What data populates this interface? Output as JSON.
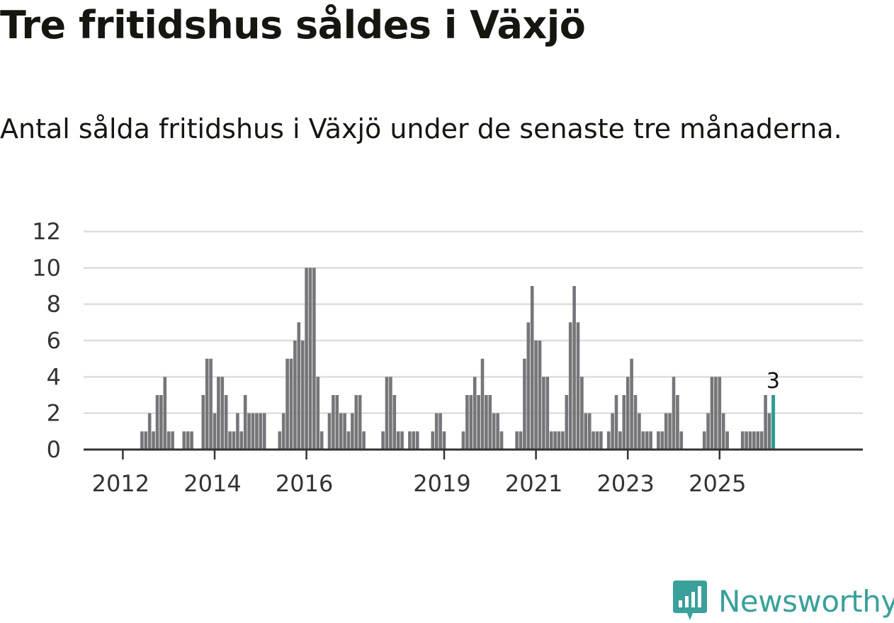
{
  "header": {
    "title": "Tre fritidshus såldes i Växjö",
    "subtitle": "Antal sålda fritidshus i Växjö under de senaste tre månaderna."
  },
  "brand": {
    "name": "Newsworthy",
    "icon": "newsworthy-chart-icon",
    "color": "#3aa09a"
  },
  "chart_data": {
    "type": "bar",
    "x_start": "2011-01",
    "interval": "month",
    "values": [
      0,
      0,
      0,
      0,
      0,
      0,
      0,
      0,
      0,
      0,
      0,
      0,
      0,
      0,
      0,
      0,
      0,
      1,
      1,
      2,
      1,
      3,
      3,
      4,
      1,
      1,
      0,
      0,
      1,
      1,
      1,
      0,
      0,
      3,
      5,
      5,
      2,
      4,
      4,
      3,
      1,
      1,
      2,
      1,
      3,
      2,
      2,
      2,
      2,
      2,
      0,
      0,
      0,
      1,
      2,
      5,
      5,
      6,
      7,
      6,
      10,
      10,
      10,
      4,
      1,
      0,
      2,
      3,
      3,
      2,
      2,
      1,
      2,
      3,
      3,
      1,
      0,
      0,
      0,
      0,
      1,
      4,
      4,
      3,
      1,
      1,
      0,
      1,
      1,
      1,
      0,
      0,
      0,
      1,
      2,
      2,
      1,
      0,
      0,
      0,
      0,
      1,
      3,
      3,
      4,
      3,
      5,
      3,
      3,
      2,
      2,
      1,
      0,
      0,
      0,
      1,
      1,
      5,
      7,
      9,
      6,
      6,
      4,
      4,
      1,
      1,
      1,
      1,
      3,
      7,
      9,
      7,
      4,
      2,
      2,
      1,
      1,
      1,
      0,
      1,
      2,
      3,
      1,
      3,
      4,
      5,
      3,
      2,
      1,
      1,
      1,
      0,
      1,
      1,
      2,
      2,
      4,
      3,
      1,
      0,
      0,
      0,
      0,
      0,
      1,
      2,
      4,
      4,
      4,
      2,
      1,
      0,
      0,
      0,
      1,
      1,
      1,
      1,
      1,
      1,
      3,
      2,
      3
    ],
    "y_ticks": [
      0,
      2,
      4,
      6,
      8,
      10,
      12
    ],
    "ylim": [
      0,
      12
    ],
    "x_tick_labels": [
      "2012",
      "2014",
      "2016",
      "2019",
      "2021",
      "2023",
      "2025"
    ],
    "highlight_label": "3",
    "grid": "horizontal",
    "bar_color": "#75757a",
    "highlight_color": "#2a9d93",
    "grid_color": "#dddddd",
    "axis_color": "#333333"
  }
}
